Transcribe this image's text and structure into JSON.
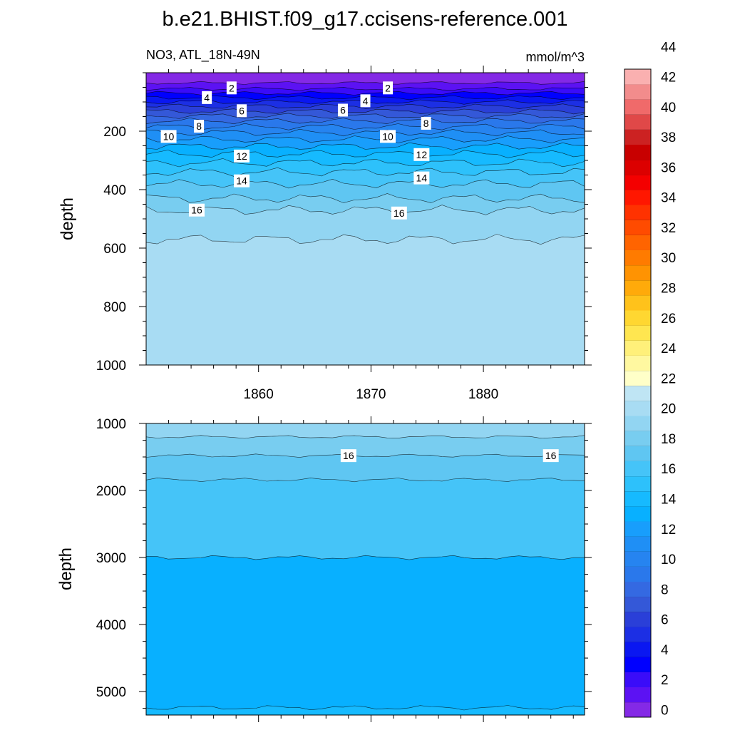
{
  "chart_data": {
    "type": "heatmap",
    "title": "b.e21.BHIST.f09_g17.ccisens-reference.001",
    "subtitle_left": "NO3, ATL_18N-49N",
    "subtitle_right": "mmol/m^3",
    "xlabel": "",
    "ylabel": "depth",
    "xlim": [
      1850,
      1889
    ],
    "x_ticks": [
      1860,
      1870,
      1880
    ],
    "x_tick_labels": [
      "1860",
      "1870",
      "1880"
    ],
    "colorbar": {
      "levels": [
        0,
        2,
        4,
        6,
        8,
        10,
        12,
        14,
        16,
        18,
        20,
        22,
        24,
        26,
        28,
        30,
        32,
        34,
        36,
        38,
        40,
        42,
        44
      ],
      "labels": [
        "0",
        "2",
        "4",
        "6",
        "8",
        "10",
        "12",
        "14",
        "16",
        "18",
        "20",
        "22",
        "24",
        "26",
        "28",
        "30",
        "32",
        "34",
        "36",
        "38",
        "40",
        "42",
        "44"
      ],
      "colors": [
        "#8429e6",
        "#5c12f3",
        "#3a0cf9",
        "#0000ff",
        "#0a17f1",
        "#1c2fe4",
        "#2a3fd8",
        "#3458d8",
        "#3469e2",
        "#2a78eb",
        "#2684f0",
        "#1f8ff5",
        "#189efc",
        "#08b0ff",
        "#16baff",
        "#2dc1fb",
        "#45c4f8",
        "#5fc6f2",
        "#78cdf0",
        "#92d5f2",
        "#a8dcf3",
        "#bfe5f4",
        "#ffffc8",
        "#fff8a0",
        "#fff07a",
        "#ffe650",
        "#ffd731",
        "#ffc21b",
        "#ffaa0a",
        "#ff9302",
        "#ff7b00",
        "#ff6400",
        "#ff4b00",
        "#ff3200",
        "#ff1700",
        "#f40000",
        "#dc0000",
        "#c80000",
        "#cc2222",
        "#e04848",
        "#f06a6a",
        "#f28c8c",
        "#fab0b0"
      ]
    },
    "panels": [
      {
        "ylim": [
          0,
          1000
        ],
        "y_ticks": [
          200,
          400,
          600,
          800,
          1000
        ],
        "y_tick_labels": [
          "200",
          "400",
          "600",
          "800",
          "1000"
        ],
        "contours": [
          {
            "level": 0,
            "depth": 35
          },
          {
            "level": 1,
            "depth": 55
          },
          {
            "level": 2,
            "depth": 70
          },
          {
            "level": 3,
            "depth": 85
          },
          {
            "level": 4,
            "depth": 100
          },
          {
            "level": 5,
            "depth": 115
          },
          {
            "level": 6,
            "depth": 132
          },
          {
            "level": 7,
            "depth": 148
          },
          {
            "level": 8,
            "depth": 165
          },
          {
            "level": 9,
            "depth": 185
          },
          {
            "level": 10,
            "depth": 205
          },
          {
            "level": 11,
            "depth": 228
          },
          {
            "level": 12,
            "depth": 252
          },
          {
            "level": 13,
            "depth": 278
          },
          {
            "level": 14,
            "depth": 308
          },
          {
            "level": 15,
            "depth": 340
          },
          {
            "level": 16,
            "depth": 380
          },
          {
            "level": 17,
            "depth": 430
          },
          {
            "level": 18,
            "depth": 470
          },
          {
            "level": 19,
            "depth": 570
          }
        ],
        "labels": [
          {
            "text": "2",
            "year": 1857.6,
            "depth": 52
          },
          {
            "text": "2",
            "year": 1871.5,
            "depth": 52
          },
          {
            "text": "4",
            "year": 1855.4,
            "depth": 85
          },
          {
            "text": "4",
            "year": 1869.5,
            "depth": 96
          },
          {
            "text": "6",
            "year": 1858.5,
            "depth": 130
          },
          {
            "text": "6",
            "year": 1867.5,
            "depth": 128
          },
          {
            "text": "8",
            "year": 1854.7,
            "depth": 183
          },
          {
            "text": "8",
            "year": 1874.9,
            "depth": 173
          },
          {
            "text": "10",
            "year": 1852.0,
            "depth": 218
          },
          {
            "text": "10",
            "year": 1871.5,
            "depth": 218
          },
          {
            "text": "12",
            "year": 1858.5,
            "depth": 285
          },
          {
            "text": "12",
            "year": 1874.5,
            "depth": 280
          },
          {
            "text": "14",
            "year": 1858.5,
            "depth": 370
          },
          {
            "text": "14",
            "year": 1874.5,
            "depth": 360
          },
          {
            "text": "16",
            "year": 1854.5,
            "depth": 470
          },
          {
            "text": "16",
            "year": 1872.5,
            "depth": 480
          }
        ]
      },
      {
        "ylim": [
          1000,
          5350
        ],
        "y_ticks": [
          1000,
          2000,
          3000,
          4000,
          5000
        ],
        "y_tick_labels": [
          "1000",
          "2000",
          "3000",
          "4000",
          "5000"
        ],
        "contours": [
          {
            "level": 18,
            "depth": 1200
          },
          {
            "level": 17,
            "depth": 1480
          },
          {
            "level": 16,
            "depth": 1840
          },
          {
            "level": 13,
            "depth": 3000
          },
          {
            "level": 14,
            "depth": 5240
          }
        ],
        "labels": [
          {
            "text": "16",
            "year": 1868.0,
            "depth": 1480
          },
          {
            "text": "16",
            "year": 1886.0,
            "depth": 1480
          }
        ]
      }
    ]
  }
}
